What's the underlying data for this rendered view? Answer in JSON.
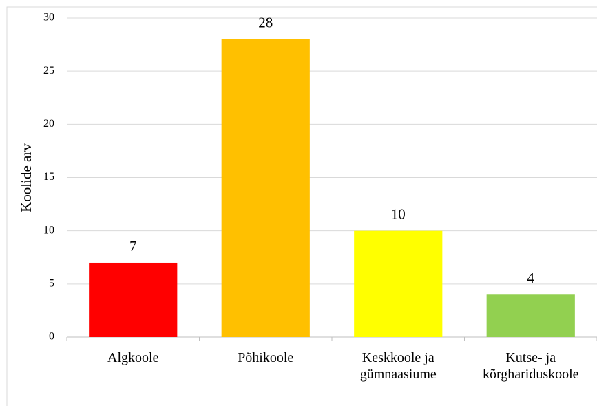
{
  "chart_data": {
    "type": "bar",
    "y_label": "Koolide arv",
    "categories": [
      "Algkoole",
      "Põhikoole",
      "Keskkoole ja\ngümnaasiume",
      "Kutse- ja\nkõrghariduskoole"
    ],
    "values": [
      7,
      28,
      10,
      4
    ],
    "colors": [
      "#ff0000",
      "#ffc000",
      "#ffff00",
      "#92d050"
    ],
    "ylim": [
      0,
      30
    ],
    "yticks": [
      0,
      5,
      10,
      15,
      20,
      25,
      30
    ],
    "grid": true
  }
}
